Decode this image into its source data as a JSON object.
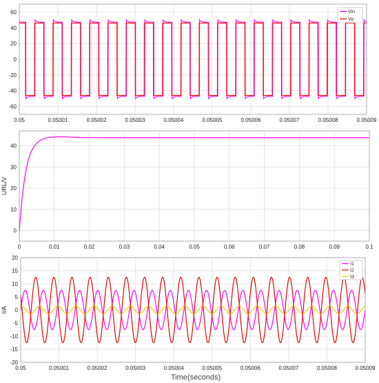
{
  "chart_data": [
    {
      "type": "line",
      "title": "",
      "xlabel": "",
      "ylabel": "",
      "xlim": [
        0.05,
        0.05009
      ],
      "ylim": [
        -70,
        70
      ],
      "x_ticks": [
        "0.05",
        "0.05001",
        "0.05002",
        "0.05003",
        "0.05004",
        "0.05005",
        "0.05006",
        "0.05007",
        "0.05008",
        "0.05009"
      ],
      "y_ticks": [
        "-60",
        "-40",
        "-20",
        "0",
        "20",
        "40",
        "60"
      ],
      "grid": true,
      "legend": "top-right",
      "series": [
        {
          "name": "Vin",
          "color": "#ff00ff",
          "waveform": "square",
          "cycles": 19,
          "amplitude": 48,
          "overshoot": 51,
          "phase": 0.14
        },
        {
          "name": "Vo",
          "color": "#ff0000",
          "waveform": "square",
          "cycles": 19,
          "amplitude": 46,
          "phase": 0.16
        }
      ]
    },
    {
      "type": "line",
      "title": "",
      "xlabel": "",
      "ylabel": "URL/V",
      "xlim": [
        0,
        0.1
      ],
      "ylim": [
        -5,
        47
      ],
      "x_ticks": [
        "0",
        "0.01",
        "0.02",
        "0.03",
        "0.04",
        "0.05",
        "0.06",
        "0.07",
        "0.08",
        "0.09",
        "0.1"
      ],
      "y_ticks": [
        "0",
        "10",
        "20",
        "30",
        "40"
      ],
      "grid": true,
      "series": [
        {
          "name": "",
          "color": "#ff00ff",
          "waveform": "first-order-rise",
          "initial": -1,
          "final": 43.8,
          "peak": 44.3,
          "peak_at": 0.01,
          "tau": 0.0018
        }
      ]
    },
    {
      "type": "line",
      "title": "",
      "xlabel": "Time(seconds)",
      "ylabel": "I/A",
      "xlim": [
        0.05,
        0.05009
      ],
      "ylim": [
        -20,
        20
      ],
      "x_ticks": [
        "0.05",
        "0.05001",
        "0.05002",
        "0.05003",
        "0.05004",
        "0.05005",
        "0.05006",
        "0.05007",
        "0.05008",
        "0.05009"
      ],
      "y_ticks": [
        "-20",
        "-15",
        "-10",
        "-5",
        "0",
        "5",
        "10",
        "15",
        "20"
      ],
      "grid": true,
      "legend": "top-right",
      "series": [
        {
          "name": "I1",
          "color": "#ff00ff",
          "waveform": "sine",
          "cycles": 19,
          "amplitude": 7.5,
          "phase": 0.0
        },
        {
          "name": "I2",
          "color": "#e60000",
          "waveform": "sine",
          "cycles": 19,
          "amplitude": 12.5,
          "phase": 0.42
        },
        {
          "name": "I3",
          "color": "#f0d000",
          "waveform": "sine",
          "cycles": 19,
          "amplitude": 1.5,
          "phase": 0.2
        }
      ]
    }
  ]
}
